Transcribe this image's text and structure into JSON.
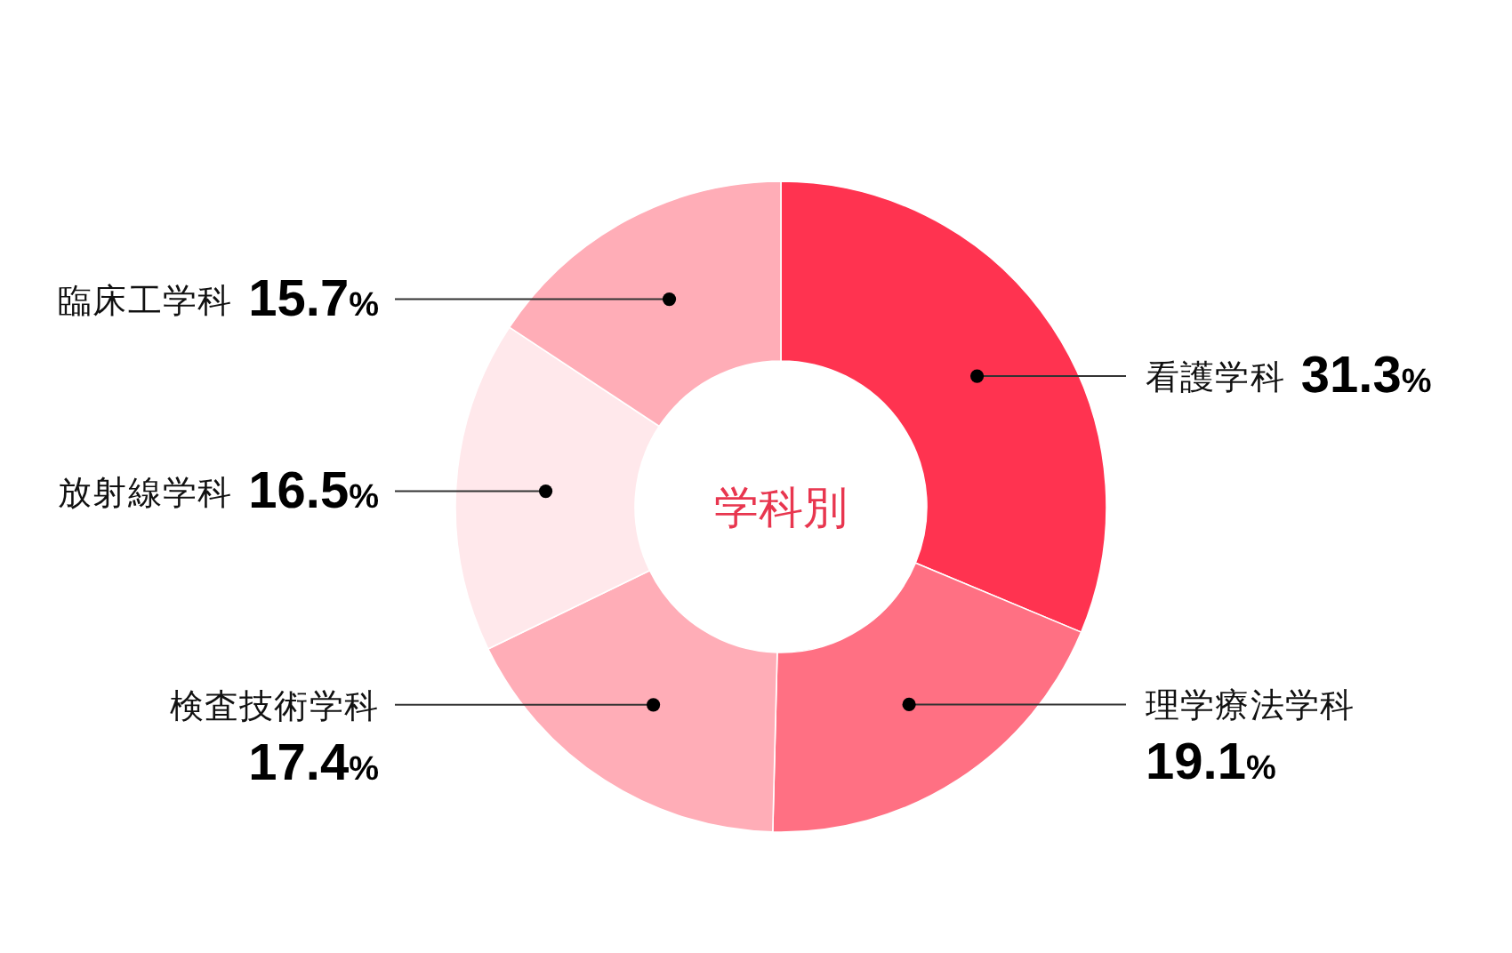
{
  "chart_data": {
    "type": "donut",
    "title": "学科別",
    "categories": [
      "看護学科",
      "理学療法学科",
      "検査技術学科",
      "放射線学科",
      "臨床工学科"
    ],
    "values": [
      31.3,
      19.1,
      17.4,
      16.5,
      15.7
    ],
    "value_labels": [
      "31.3%",
      "19.1%",
      "17.4%",
      "16.5%",
      "15.7%"
    ],
    "colors": [
      "#ff3350",
      "#ff7083",
      "#ffadb7",
      "#ffe8eb",
      "#ffadb7"
    ]
  }
}
